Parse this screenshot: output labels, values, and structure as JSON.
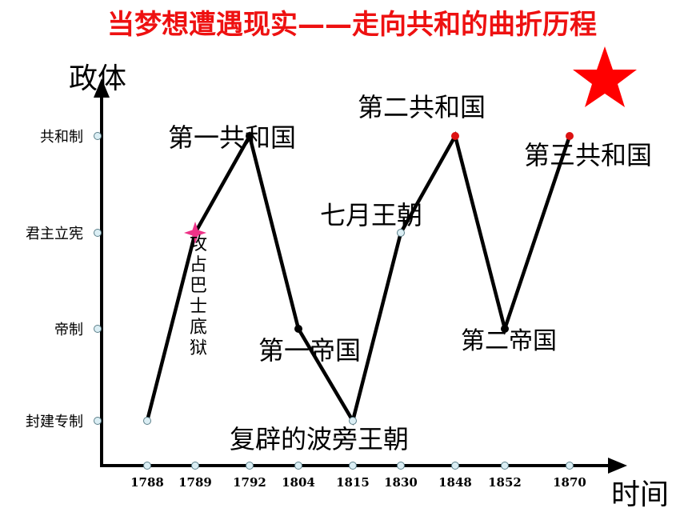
{
  "chart_data": {
    "type": "line",
    "title": "当梦想遭遇现实——走向共和的曲折历程",
    "ylabel": "政体",
    "xlabel": "时间",
    "categories": [
      "1788",
      "1789",
      "1792",
      "1804",
      "1815",
      "1830",
      "1848",
      "1852",
      "1870"
    ],
    "y_levels": [
      "封建专制",
      "帝制",
      "君主立宪",
      "共和制"
    ],
    "points": [
      {
        "x": 0,
        "y": 0
      },
      {
        "x": 1,
        "y": 2
      },
      {
        "x": 2,
        "y": 3
      },
      {
        "x": 3,
        "y": 1
      },
      {
        "x": 4,
        "y": 0
      },
      {
        "x": 5,
        "y": 2
      },
      {
        "x": 6,
        "y": 3
      },
      {
        "x": 7,
        "y": 1
      },
      {
        "x": 8,
        "y": 3
      }
    ],
    "annotations": [
      {
        "text": "攻占巴士底狱",
        "x": 1,
        "y": 2,
        "vertical": true
      },
      {
        "text": "第一共和国",
        "x": 2,
        "y": 3
      },
      {
        "text": "第一帝国",
        "x": 3,
        "y": 1
      },
      {
        "text": "复辟的波旁王朝",
        "x": 4,
        "y": 0
      },
      {
        "text": "七月王朝",
        "x": 5,
        "y": 2
      },
      {
        "text": "第二共和国",
        "x": 6,
        "y": 3
      },
      {
        "text": "第二帝国",
        "x": 7,
        "y": 1
      },
      {
        "text": "第三共和国",
        "x": 8,
        "y": 3
      }
    ],
    "colors": {
      "line": "#000000",
      "title": "#ee1111",
      "star": "#ff0000",
      "marker": "#ee3388",
      "dot_red": "#dd1111",
      "tick_dot": "#dbeef4"
    }
  }
}
